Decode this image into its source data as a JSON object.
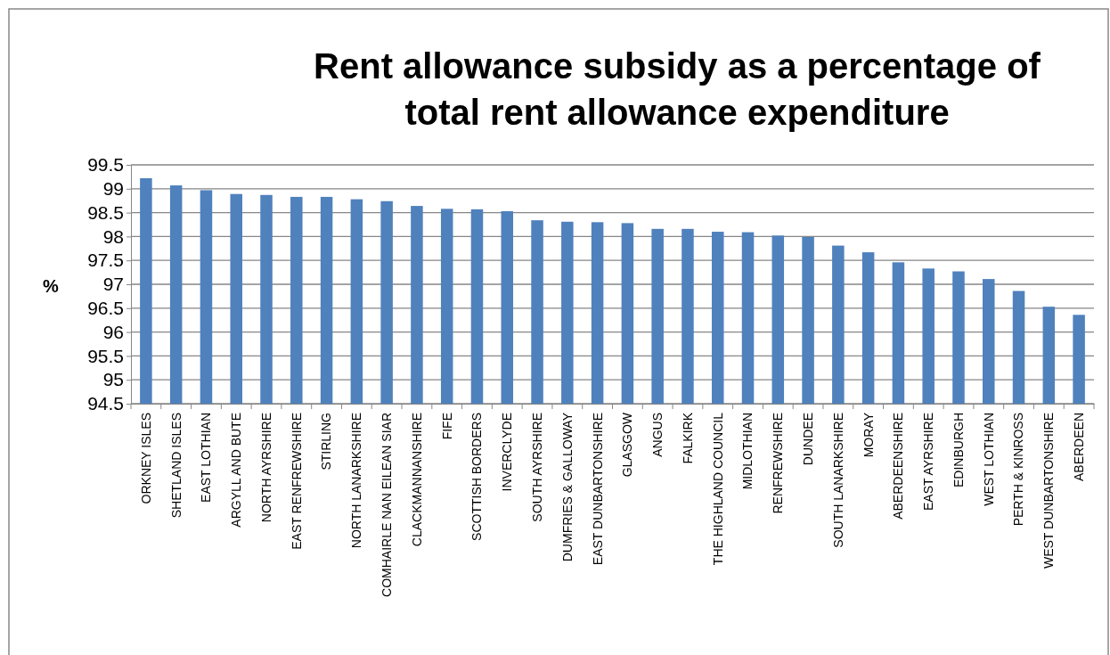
{
  "chart_data": {
    "type": "bar",
    "title": "Rent allowance subsidy as a percentage of total rent allowance expenditure",
    "ylabel": "%",
    "categories": [
      "ORKNEY ISLES",
      "SHETLAND ISLES",
      "EAST LOTHIAN",
      "ARGYLL AND BUTE",
      "NORTH AYRSHIRE",
      "EAST RENFREWSHIRE",
      "STIRLING",
      "NORTH LANARKSHIRE",
      "COMHAIRLE NAN EILEAN SIAR",
      "CLACKMANNANSHIRE",
      "FIFE",
      "SCOTTISH BORDERS",
      "INVERCLYDE",
      "SOUTH AYRSHIRE",
      "DUMFRIES & GALLOWAY",
      "EAST DUNBARTONSHIRE",
      "GLASGOW",
      "ANGUS",
      "FALKIRK",
      "THE HIGHLAND COUNCIL",
      "MIDLOTHIAN",
      "RENFREWSHIRE",
      "DUNDEE",
      "SOUTH LANARKSHIRE",
      "MORAY",
      "ABERDEENSHIRE",
      "EAST AYRSHIRE",
      "EDINBURGH",
      "WEST LOTHIAN",
      "PERTH & KINROSS",
      "WEST DUNBARTONSHIRE",
      "ABERDEEN"
    ],
    "values": [
      99.22,
      99.07,
      98.97,
      98.89,
      98.87,
      98.83,
      98.83,
      98.78,
      98.74,
      98.64,
      98.58,
      98.57,
      98.53,
      98.34,
      98.31,
      98.3,
      98.28,
      98.16,
      98.16,
      98.1,
      98.09,
      98.02,
      97.99,
      97.81,
      97.67,
      97.46,
      97.33,
      97.27,
      97.11,
      96.86,
      96.53,
      96.36
    ],
    "color": "#4f81bd",
    "ylim": [
      94.5,
      99.5
    ],
    "yticks": [
      94.5,
      95,
      95.5,
      96,
      96.5,
      97,
      97.5,
      98,
      98.5,
      99,
      99.5
    ],
    "grid": "y"
  }
}
